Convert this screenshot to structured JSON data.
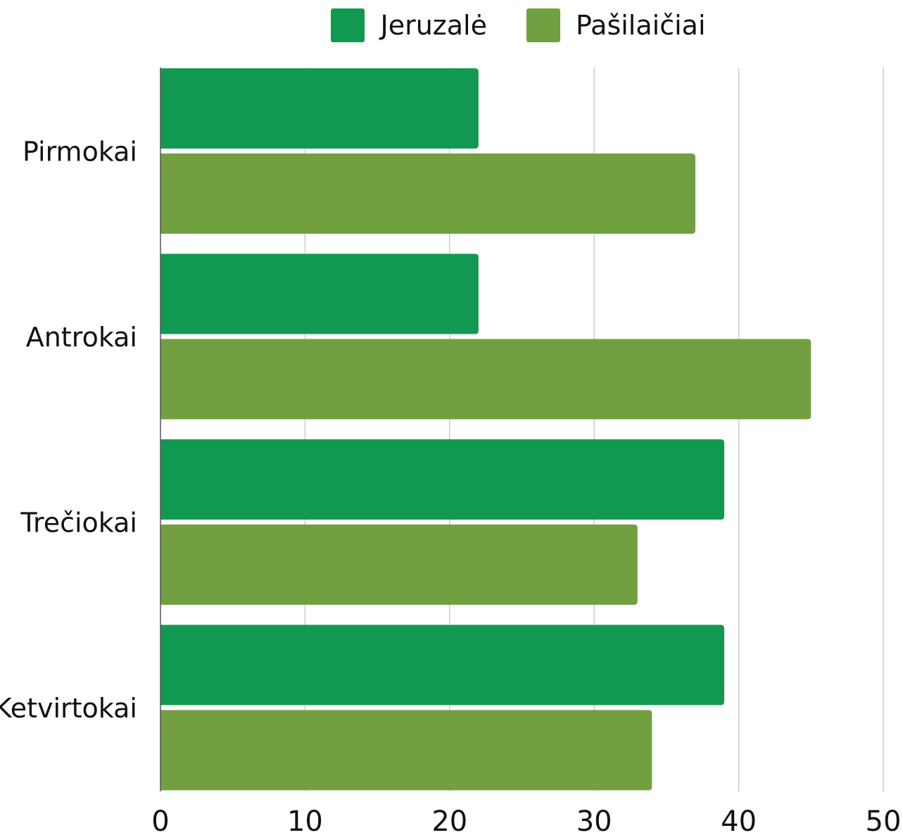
{
  "chart_data": {
    "type": "bar",
    "orientation": "horizontal",
    "categories": [
      "Pirmokai",
      "Antrokai",
      "Trečiokai",
      "Ketvirtokai"
    ],
    "series": [
      {
        "name": "Jeruzalė",
        "values": [
          22,
          22,
          39,
          39
        ],
        "color": "#129951"
      },
      {
        "name": "Pašilaičiai",
        "values": [
          37,
          45,
          33,
          34
        ],
        "color": "#72a040"
      }
    ],
    "xlim": [
      0,
      50
    ],
    "x_ticks": [
      "0",
      "10",
      "20",
      "30",
      "40",
      "50"
    ],
    "grid": true,
    "legend_position": "top",
    "title": "",
    "xlabel": "",
    "ylabel": ""
  }
}
